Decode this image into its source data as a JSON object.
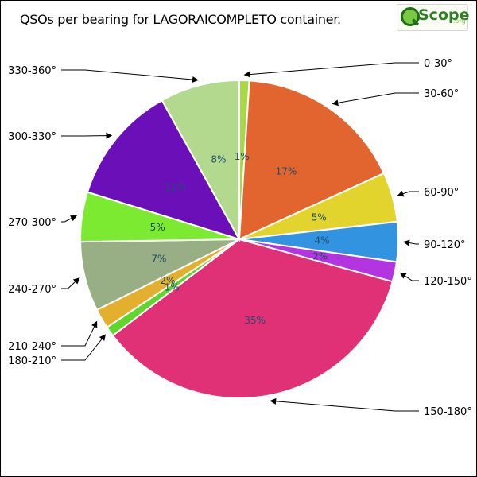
{
  "title": "QSOs per bearing for LAGORAICOMPLETO container.",
  "logo": {
    "brand": "Scope",
    "tld": ".org",
    "mark_icon": "magnifier-q-icon"
  },
  "chart_data": {
    "type": "pie",
    "title": "QSOs per bearing for LAGORAICOMPLETO container.",
    "slices": [
      {
        "label": "0-30°",
        "value": 1,
        "pct": "1%",
        "color": "#a8d84a"
      },
      {
        "label": "30-60°",
        "value": 17,
        "pct": "17%",
        "color": "#e2652f"
      },
      {
        "label": "60-90°",
        "value": 5,
        "pct": "5%",
        "color": "#e2d42c"
      },
      {
        "label": "90-120°",
        "value": 4,
        "pct": "4%",
        "color": "#3294e0"
      },
      {
        "label": "120-150°",
        "value": 2,
        "pct": "2%",
        "color": "#b335e0"
      },
      {
        "label": "150-180°",
        "value": 35,
        "pct": "35%",
        "color": "#e03177"
      },
      {
        "label": "180-210°",
        "value": 1,
        "pct": "1%",
        "color": "#5ed62e"
      },
      {
        "label": "210-240°",
        "value": 2,
        "pct": "2%",
        "color": "#e2b02e"
      },
      {
        "label": "240-270°",
        "value": 7,
        "pct": "7%",
        "color": "#98af86"
      },
      {
        "label": "270-300°",
        "value": 5,
        "pct": "5%",
        "color": "#7cea30"
      },
      {
        "label": "300-330°",
        "value": 12,
        "pct": "12%",
        "color": "#6b0fb8"
      },
      {
        "label": "330-360°",
        "value": 8,
        "pct": "8%",
        "color": "#b2d98e"
      }
    ]
  }
}
